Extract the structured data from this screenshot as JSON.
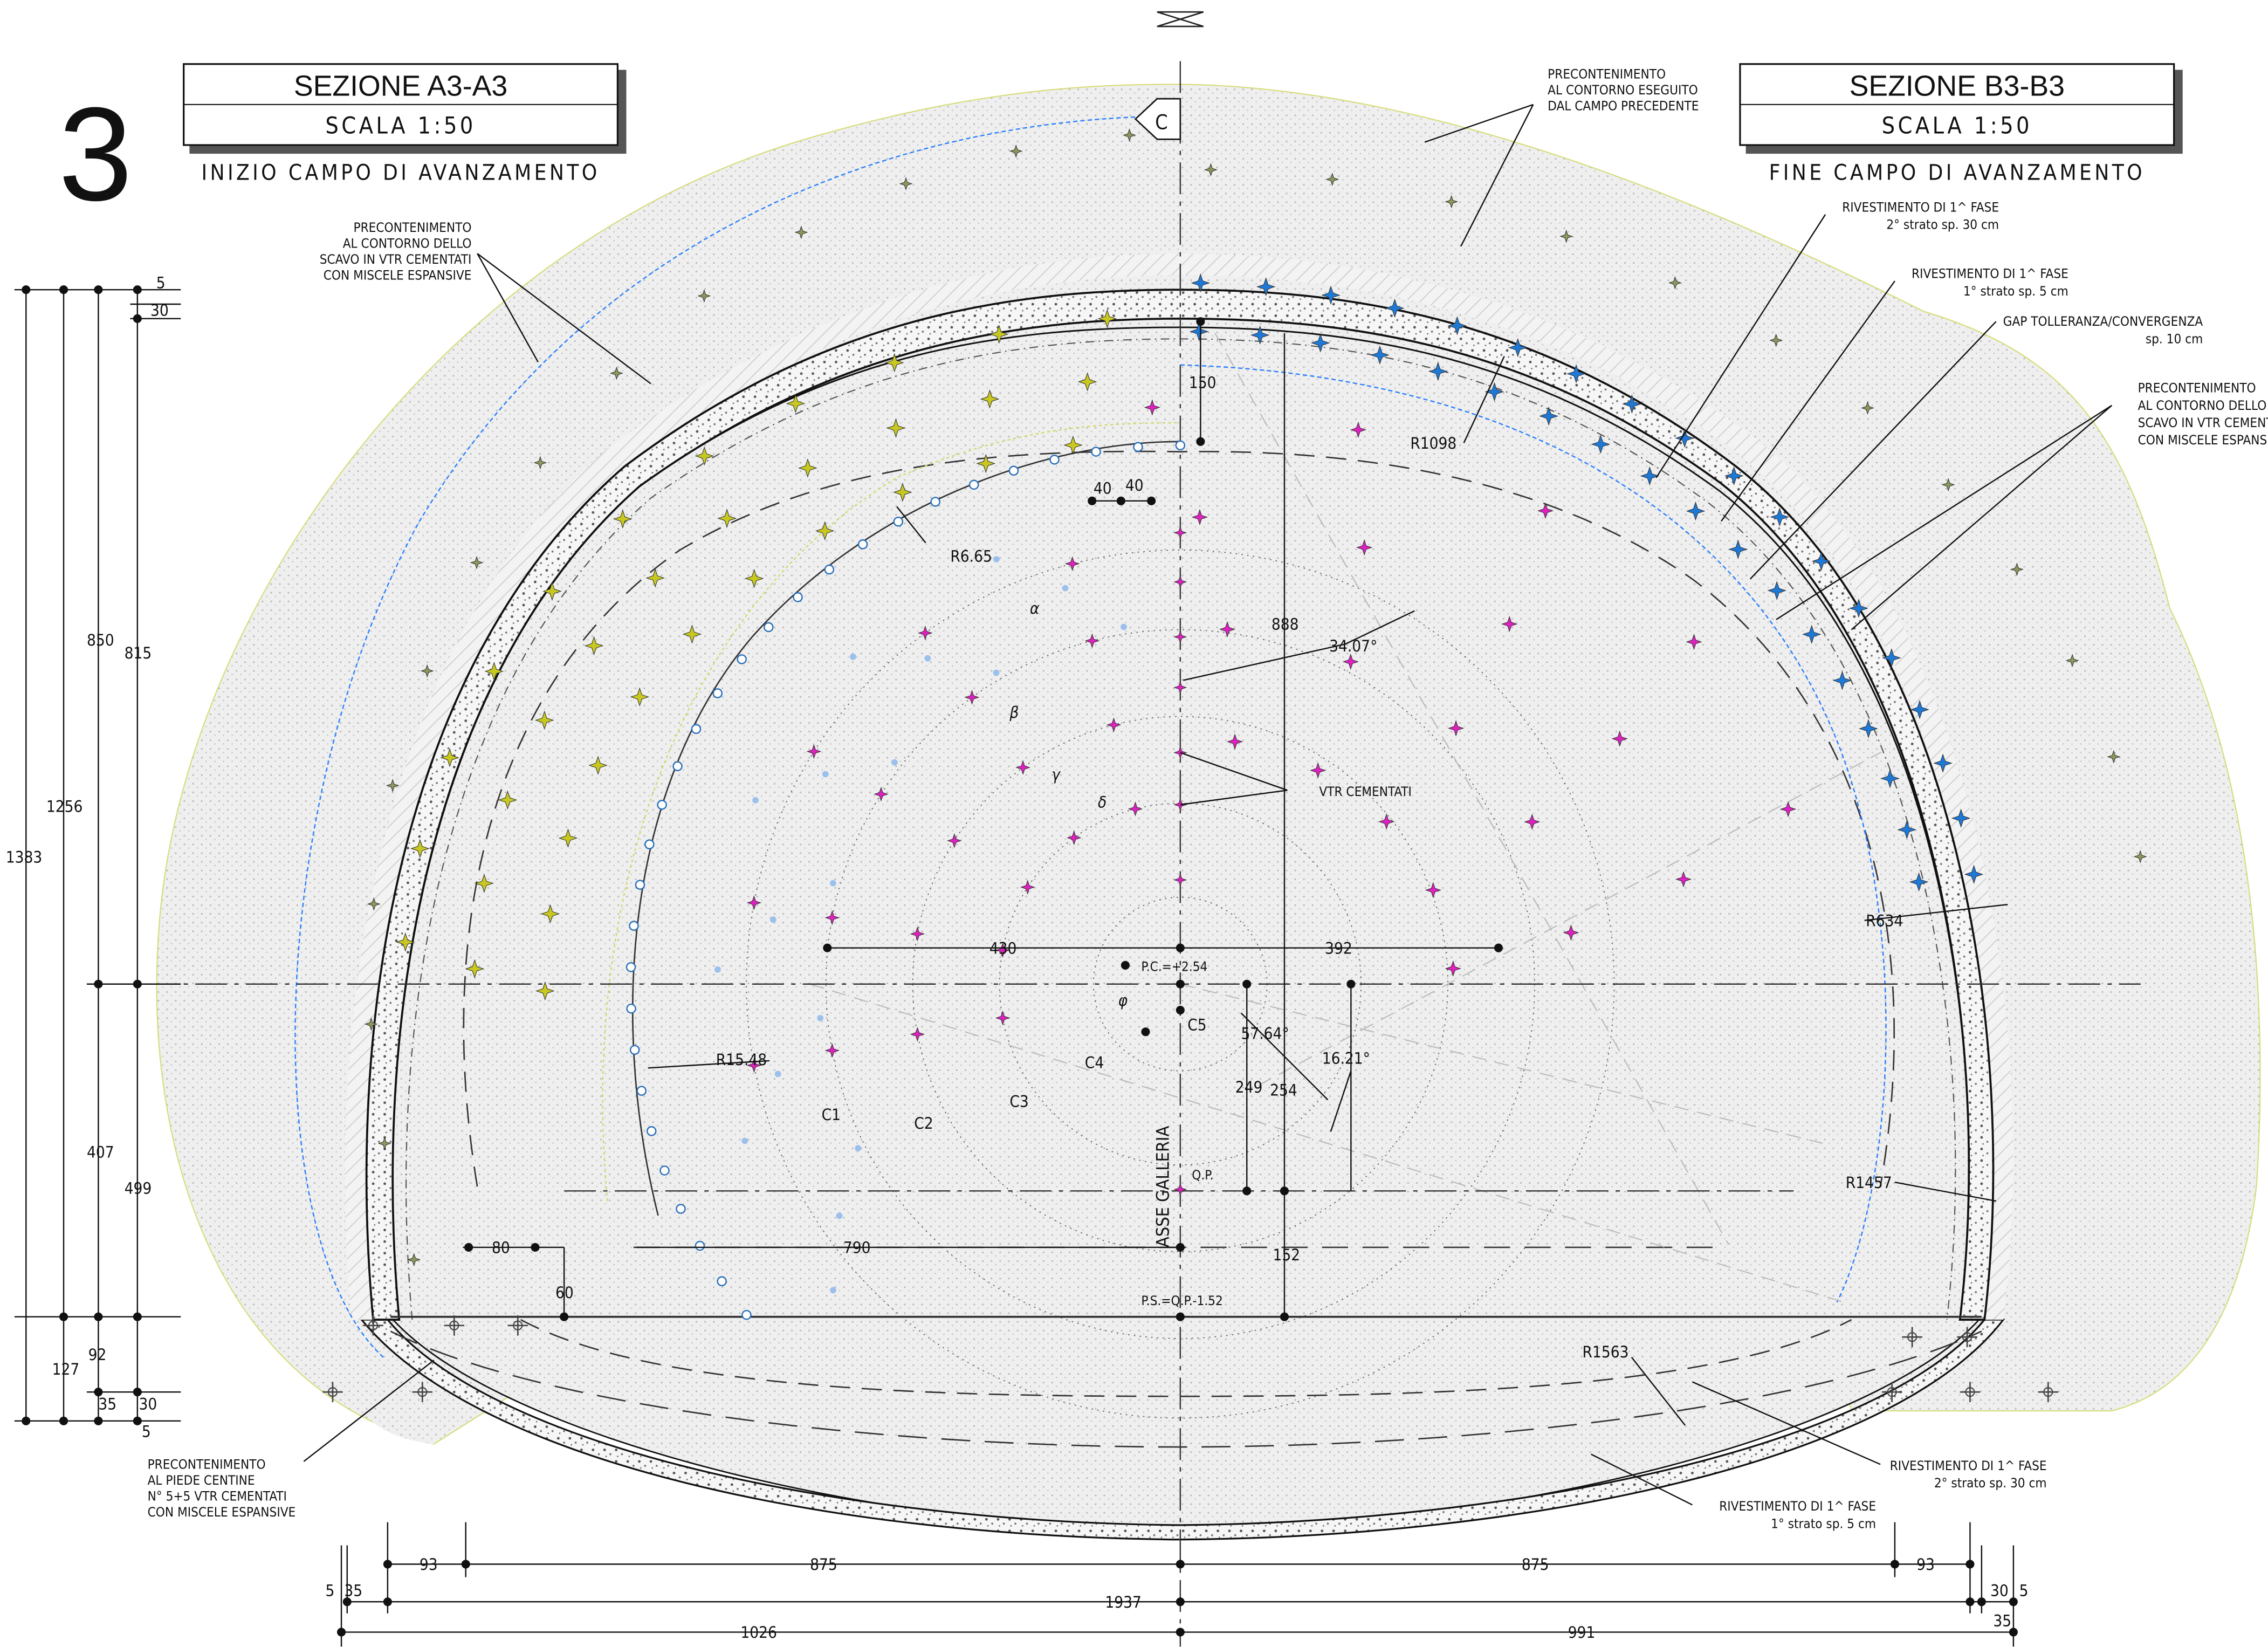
{
  "sheet_number": "3",
  "left_section": {
    "title": "SEZIONE A3-A3",
    "scale": "SCALA 1:50",
    "subtitle": "INIZIO CAMPO DI AVANZAMENTO"
  },
  "right_section": {
    "title": "SEZIONE B3-B3",
    "scale": "SCALA 1:50",
    "subtitle": "FINE CAMPO DI AVANZAMENTO"
  },
  "section_marker": "C",
  "notes": {
    "precont_prev": [
      "PRECONTENIMENTO",
      "AL CONTORNO ESEGUITO",
      "DAL CAMPO PRECEDENTE"
    ],
    "precont_left": [
      "PRECONTENIMENTO",
      "AL CONTORNO DELLO",
      "SCAVO IN VTR CEMENTATI",
      "CON MISCELE ESPANSIVE"
    ],
    "precont_right": [
      "PRECONTENIMENTO",
      "AL CONTORNO DELLO",
      "SCAVO IN VTR CEMENTATI",
      "CON MISCELE ESPANSIVE"
    ],
    "precont_foot": [
      "PRECONTENIMENTO",
      "AL PIEDE CENTINE",
      "N° 5+5  VTR CEMENTATI",
      "CON MISCELE ESPANSIVE"
    ],
    "riv_top_2": [
      "RIVESTIMENTO DI 1^ FASE",
      "2° strato sp. 30 cm"
    ],
    "riv_top_1": [
      "RIVESTIMENTO DI 1^ FASE",
      "1° strato sp. 5 cm"
    ],
    "gap": [
      "GAP TOLLERANZA/CONVERGENZA",
      "sp. 10 cm"
    ],
    "riv_bot_2": [
      "RIVESTIMENTO DI 1^ FASE",
      "2° strato sp. 30 cm"
    ],
    "riv_bot_1": [
      "RIVESTIMENTO DI 1^ FASE",
      "1° strato sp. 5 cm"
    ],
    "vtr": "VTR CEMENTATI",
    "axis": "ASSE GALLERIA"
  },
  "labels": {
    "r1098": "R1098",
    "r665": "R6.65",
    "r634": "R634",
    "r1457": "R1457",
    "r1563": "R1563",
    "r1548": "R15.48",
    "alpha": "α",
    "beta": "β",
    "gamma": "γ",
    "delta": "δ",
    "phi": "φ",
    "c1": "C1",
    "c2": "C2",
    "c3": "C3",
    "c4": "C4",
    "c5": "C5",
    "ang1": "34.07°",
    "ang2": "57.64°",
    "ang3": "16.21°",
    "pc": "P.C.=+2.54",
    "qp": "Q.P.",
    "ps": "P.S.=Q.P.-1.52"
  },
  "dims": {
    "d5a": "5",
    "d30a": "30",
    "d850": "850",
    "d815": "815",
    "d1256": "1256",
    "d1383": "1383",
    "d407": "407",
    "d499": "499",
    "d127": "127",
    "d92": "92",
    "d35": "35",
    "d30b": "30",
    "d5b": "5",
    "d150": "150",
    "d40a": "40",
    "d40b": "40",
    "d888": "888",
    "d430": "430",
    "d392": "392",
    "d790": "790",
    "d80": "80",
    "d60": "60",
    "d249": "249",
    "d254": "254",
    "d152": "152",
    "b93a": "93",
    "b875a": "875",
    "b875b": "875",
    "b93b": "93",
    "b5a": "5",
    "b35a": "35",
    "b1937": "1937",
    "b30": "30",
    "b5b": "5",
    "b1026": "1026",
    "b991": "991",
    "b35b": "35"
  },
  "colors": {
    "line": "#111111",
    "olive_anchor": "#8a9a5b",
    "yellow_anchor": "#c8c820",
    "blue_anchor": "#1e78d6",
    "magenta_anchor": "#e020c0",
    "blue_dashed": "#2a7fff",
    "ground": "#e6e6e6"
  }
}
